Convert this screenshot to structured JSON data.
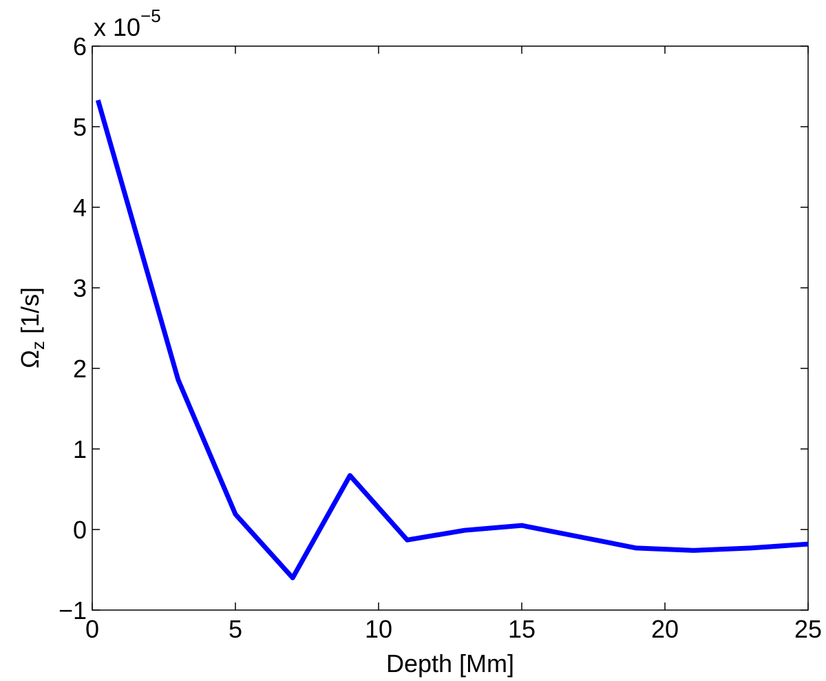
{
  "chart_data": {
    "type": "line",
    "xlabel": "Depth [Mm]",
    "ylabel": {
      "symbol": "Ω",
      "subscript": "z",
      "unit": "[1/s]"
    },
    "y_multiplier": {
      "prefix": "x 10",
      "exponent": "−5"
    },
    "xlim": [
      0,
      25
    ],
    "ylim": [
      -1,
      6
    ],
    "x_ticks": [
      0,
      5,
      10,
      15,
      20,
      25
    ],
    "y_ticks": [
      -1,
      0,
      1,
      2,
      3,
      4,
      5,
      6
    ],
    "x_tick_labels": [
      "0",
      "5",
      "10",
      "15",
      "20",
      "25"
    ],
    "y_tick_labels": [
      "−1",
      "0",
      "1",
      "2",
      "3",
      "4",
      "5",
      "6"
    ],
    "grid": false,
    "series": [
      {
        "color": "#0000ff",
        "x": [
          0.2,
          3,
          5,
          7,
          9,
          11,
          13,
          15,
          17,
          19,
          21,
          23,
          25
        ],
        "y": [
          5.33,
          1.86,
          0.19,
          -0.6,
          0.67,
          -0.13,
          -0.01,
          0.05,
          -0.09,
          -0.23,
          -0.26,
          -0.23,
          -0.18
        ]
      }
    ]
  }
}
